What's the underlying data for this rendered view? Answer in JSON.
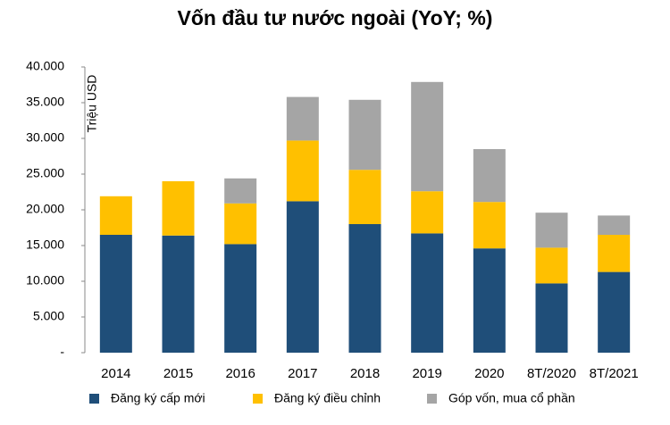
{
  "chart_data": {
    "type": "stacked_bar",
    "title": "Vốn đầu tư nước ngoài (YoY; %)",
    "y_label": "Triệu USD",
    "categories": [
      "2014",
      "2015",
      "2016",
      "2017",
      "2018",
      "2019",
      "2020",
      "8T/2020",
      "8T/2021"
    ],
    "series": [
      {
        "name": "Đăng ký cấp mới",
        "color": "#1f4e79",
        "values": [
          16500,
          16400,
          15200,
          21200,
          18000,
          16700,
          14600,
          9700,
          11300
        ]
      },
      {
        "name": "Đăng ký điều chỉnh",
        "color": "#ffc000",
        "values": [
          5400,
          7600,
          5700,
          8500,
          7600,
          5900,
          6500,
          5000,
          5200
        ]
      },
      {
        "name": "Góp vốn, mua cổ phần",
        "color": "#a5a5a5",
        "values": [
          0,
          0,
          3500,
          6100,
          9800,
          15300,
          7400,
          4900,
          2700
        ]
      }
    ],
    "ylim": [
      0,
      40000
    ],
    "yticks": [
      {
        "value": 0,
        "label": "-"
      },
      {
        "value": 5000,
        "label": "5.000"
      },
      {
        "value": 10000,
        "label": "10.000"
      },
      {
        "value": 15000,
        "label": "15.000"
      },
      {
        "value": 20000,
        "label": "20.000"
      },
      {
        "value": 25000,
        "label": "25.000"
      },
      {
        "value": 30000,
        "label": "30.000"
      },
      {
        "value": 35000,
        "label": "35.000"
      },
      {
        "value": 40000,
        "label": "40.000"
      }
    ],
    "grid": false,
    "legend": "bottom"
  }
}
